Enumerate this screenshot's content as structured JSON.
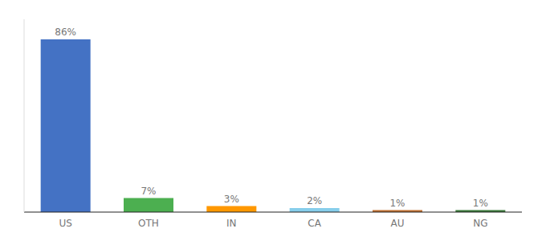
{
  "chart_data": {
    "type": "bar",
    "categories": [
      "US",
      "OTH",
      "IN",
      "CA",
      "AU",
      "NG"
    ],
    "values": [
      86,
      7,
      3,
      2,
      1,
      1
    ],
    "value_labels": [
      "86%",
      "7%",
      "3%",
      "2%",
      "1%",
      "1%"
    ],
    "colors": [
      "#4472c4",
      "#4caf50",
      "#ff9800",
      "#87ceeb",
      "#c07030",
      "#3a7a3a"
    ],
    "ylim": [
      0,
      96
    ],
    "data_labels": true,
    "tick_labels": "x",
    "grid": false
  }
}
